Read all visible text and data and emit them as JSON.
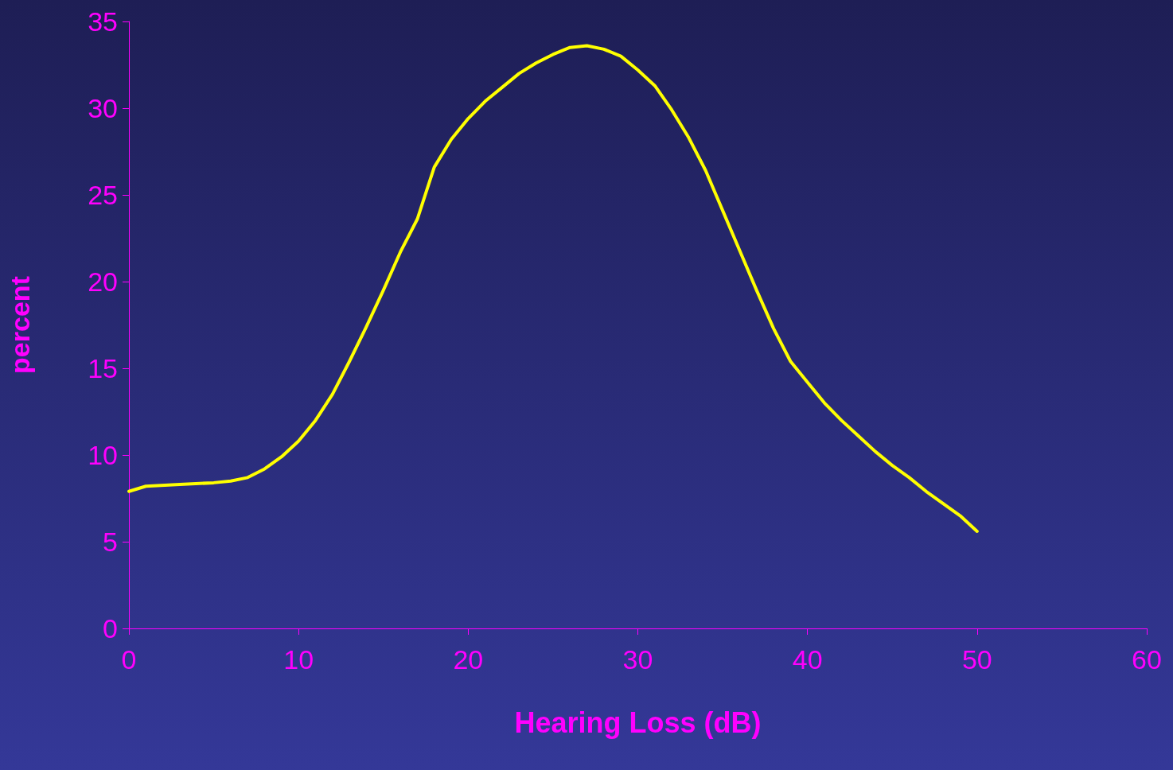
{
  "chart_data": {
    "type": "line",
    "xlabel": "Hearing Loss (dB)",
    "ylabel": "percent",
    "x": [
      0,
      1,
      3,
      5,
      6,
      7,
      8,
      9,
      10,
      11,
      12,
      13,
      14,
      15,
      16,
      17,
      18,
      19,
      20,
      21,
      22,
      23,
      24,
      25,
      26,
      27,
      28,
      29,
      30,
      31,
      32,
      33,
      34,
      35,
      36,
      37,
      38,
      39,
      40,
      41,
      42,
      43,
      44,
      45,
      46,
      47,
      48,
      49,
      50
    ],
    "series": [
      {
        "color": "#ffff00",
        "values": [
          7.9,
          8.2,
          8.3,
          8.4,
          8.5,
          8.7,
          9.2,
          9.9,
          10.8,
          12.0,
          13.5,
          15.4,
          17.4,
          19.5,
          21.7,
          23.6,
          26.6,
          28.2,
          29.4,
          30.4,
          31.2,
          32.0,
          32.6,
          33.1,
          33.5,
          33.6,
          33.4,
          33.0,
          32.2,
          31.3,
          29.9,
          28.3,
          26.4,
          24.1,
          21.8,
          19.5,
          17.3,
          15.4,
          14.2,
          13.0,
          12.0,
          11.1,
          10.2,
          9.4,
          8.7,
          7.9,
          7.2,
          6.5,
          5.6
        ]
      }
    ],
    "xlim": [
      0,
      60
    ],
    "xticks": [
      0,
      10,
      20,
      30,
      40,
      50,
      60
    ],
    "ylim": [
      0,
      35
    ],
    "yticks": [
      0,
      5,
      10,
      15,
      20,
      25,
      30,
      35
    ],
    "grid": false,
    "marker": "none",
    "line_style": "solid"
  }
}
